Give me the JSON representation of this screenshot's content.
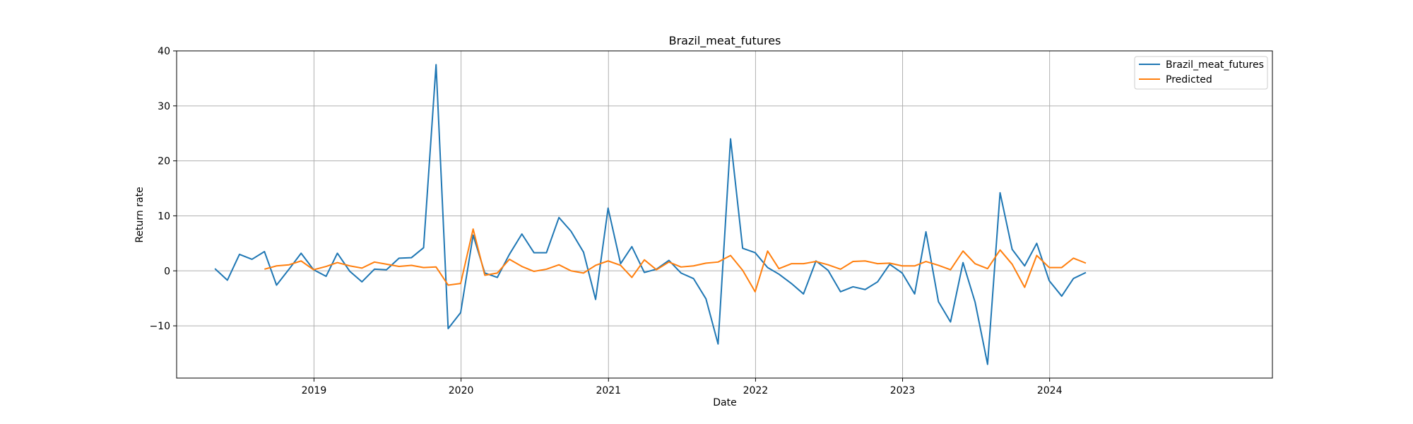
{
  "chart_data": {
    "type": "line",
    "title": "Brazil_meat_futures",
    "xlabel": "Date",
    "ylabel": "Return rate",
    "ylim": [
      -19.5,
      40
    ],
    "xlim": [
      "2018-01-25",
      "2025-07-07"
    ],
    "yticks": [
      -10,
      0,
      10,
      20,
      30,
      40
    ],
    "xticks": [
      "2019-01-01",
      "2020-01-01",
      "2021-01-01",
      "2022-01-01",
      "2023-01-01",
      "2024-01-01"
    ],
    "xtick_labels": [
      "2019",
      "2020",
      "2021",
      "2022",
      "2023",
      "2024"
    ],
    "ytick_labels": [
      "−10",
      "0",
      "10",
      "20",
      "30",
      "40"
    ],
    "grid": true,
    "legend_position": "top-right",
    "series": [
      {
        "name": "Brazil_meat_futures",
        "color": "#1f77b4",
        "x": [
          "2018-04-30",
          "2018-05-31",
          "2018-06-30",
          "2018-07-31",
          "2018-08-31",
          "2018-09-30",
          "2018-10-31",
          "2018-11-30",
          "2018-12-31",
          "2019-01-31",
          "2019-02-28",
          "2019-03-31",
          "2019-04-30",
          "2019-05-31",
          "2019-06-30",
          "2019-07-31",
          "2019-08-31",
          "2019-09-30",
          "2019-10-31",
          "2019-11-30",
          "2019-12-31",
          "2020-01-31",
          "2020-02-29",
          "2020-03-31",
          "2020-04-30",
          "2020-05-31",
          "2020-06-30",
          "2020-07-31",
          "2020-08-31",
          "2020-09-30",
          "2020-10-31",
          "2020-11-30",
          "2020-12-31",
          "2021-01-31",
          "2021-02-28",
          "2021-03-31",
          "2021-04-30",
          "2021-05-31",
          "2021-06-30",
          "2021-07-31",
          "2021-08-31",
          "2021-09-30",
          "2021-10-31",
          "2021-11-30",
          "2021-12-31",
          "2022-01-31",
          "2022-02-28",
          "2022-03-31",
          "2022-04-30",
          "2022-05-31",
          "2022-06-30",
          "2022-07-31",
          "2022-08-31",
          "2022-09-30",
          "2022-10-31",
          "2022-11-30",
          "2022-12-31",
          "2023-01-31",
          "2023-02-28",
          "2023-03-31",
          "2023-04-30",
          "2023-05-31",
          "2023-06-30",
          "2023-07-31",
          "2023-08-31",
          "2023-09-30",
          "2023-10-31",
          "2023-11-30",
          "2023-12-31",
          "2024-01-31",
          "2024-02-29",
          "2024-03-31"
        ],
        "values": [
          0.4,
          -1.7,
          3.0,
          2.1,
          3.5,
          -2.6,
          0.3,
          3.2,
          0.2,
          -1.0,
          3.2,
          -0.1,
          -2.0,
          0.3,
          0.2,
          2.3,
          2.4,
          4.2,
          37.5,
          -10.5,
          -7.6,
          6.5,
          -0.4,
          -1.2,
          3.0,
          6.7,
          3.3,
          3.3,
          9.7,
          7.2,
          3.4,
          -5.2,
          11.4,
          1.3,
          4.4,
          -0.3,
          0.3,
          1.9,
          -0.4,
          -1.4,
          -5.1,
          -13.3,
          24.0,
          4.1,
          3.3,
          0.6,
          -0.6,
          -2.3,
          -4.2,
          1.8,
          0.1,
          -3.8,
          -2.9,
          -3.4,
          -2.0,
          1.2,
          -0.4,
          -4.2,
          7.1,
          -5.6,
          -9.3,
          1.5,
          -5.7,
          -17.0,
          14.2,
          3.9,
          0.9,
          5.0,
          -1.8,
          -4.6,
          -1.4,
          -0.3
        ]
      },
      {
        "name": "Predicted",
        "color": "#ff7f0e",
        "x": [
          "2018-08-31",
          "2018-09-30",
          "2018-10-31",
          "2018-11-30",
          "2018-12-31",
          "2019-01-31",
          "2019-02-28",
          "2019-03-31",
          "2019-04-30",
          "2019-05-31",
          "2019-06-30",
          "2019-07-31",
          "2019-08-31",
          "2019-09-30",
          "2019-10-31",
          "2019-11-30",
          "2019-12-31",
          "2020-01-31",
          "2020-02-29",
          "2020-03-31",
          "2020-04-30",
          "2020-05-31",
          "2020-06-30",
          "2020-07-31",
          "2020-08-31",
          "2020-09-30",
          "2020-10-31",
          "2020-11-30",
          "2020-12-31",
          "2021-01-31",
          "2021-02-28",
          "2021-03-31",
          "2021-04-30",
          "2021-05-31",
          "2021-06-30",
          "2021-07-31",
          "2021-08-31",
          "2021-09-30",
          "2021-10-31",
          "2021-11-30",
          "2021-12-31",
          "2022-01-31",
          "2022-02-28",
          "2022-03-31",
          "2022-04-30",
          "2022-05-31",
          "2022-06-30",
          "2022-07-31",
          "2022-08-31",
          "2022-09-30",
          "2022-10-31",
          "2022-11-30",
          "2022-12-31",
          "2023-01-31",
          "2023-02-28",
          "2023-03-31",
          "2023-04-30",
          "2023-05-31",
          "2023-06-30",
          "2023-07-31",
          "2023-08-31",
          "2023-09-30",
          "2023-10-31",
          "2023-11-30",
          "2023-12-31",
          "2024-01-31",
          "2024-02-29",
          "2024-03-31"
        ],
        "values": [
          0.3,
          0.9,
          1.1,
          1.8,
          0.2,
          0.8,
          1.5,
          0.9,
          0.5,
          1.6,
          1.2,
          0.8,
          1.0,
          0.6,
          0.7,
          -2.6,
          -2.3,
          7.6,
          -0.8,
          -0.4,
          2.1,
          0.8,
          -0.1,
          0.3,
          1.1,
          0.0,
          -0.4,
          1.0,
          1.8,
          1.0,
          -1.2,
          2.0,
          0.2,
          1.6,
          0.7,
          0.9,
          1.4,
          1.6,
          2.8,
          0.1,
          -3.8,
          3.6,
          0.4,
          1.3,
          1.3,
          1.7,
          1.1,
          0.3,
          1.7,
          1.8,
          1.3,
          1.4,
          0.9,
          0.9,
          1.7,
          1.0,
          0.2,
          3.6,
          1.3,
          0.4,
          3.8,
          1.2,
          -3.0,
          2.8,
          0.6,
          0.6,
          2.3,
          1.4
        ]
      }
    ]
  }
}
